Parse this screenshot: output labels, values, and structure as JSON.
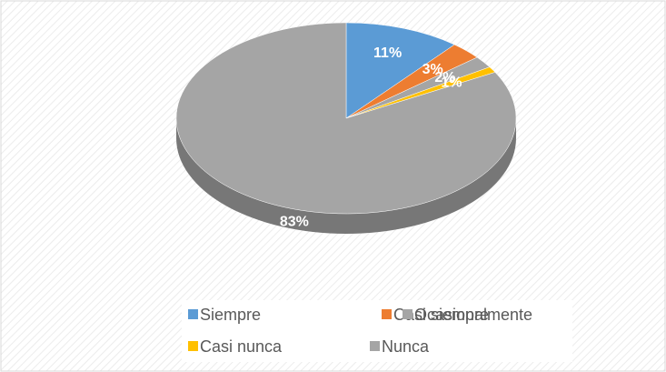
{
  "chart_data": {
    "type": "pie",
    "categories": [
      "Siempre",
      "Casi siempre",
      "Ocasionalmente",
      "Casi nunca",
      "Nunca"
    ],
    "values": [
      11,
      3,
      2,
      1,
      83
    ],
    "value_labels": [
      "11%",
      "3%",
      "2%",
      "1%",
      "83%"
    ],
    "colors": [
      "#5b9bd5",
      "#ed7d31",
      "#a5a5a5",
      "#ffc000",
      "#a5a5a5"
    ],
    "legend": "bottom"
  }
}
